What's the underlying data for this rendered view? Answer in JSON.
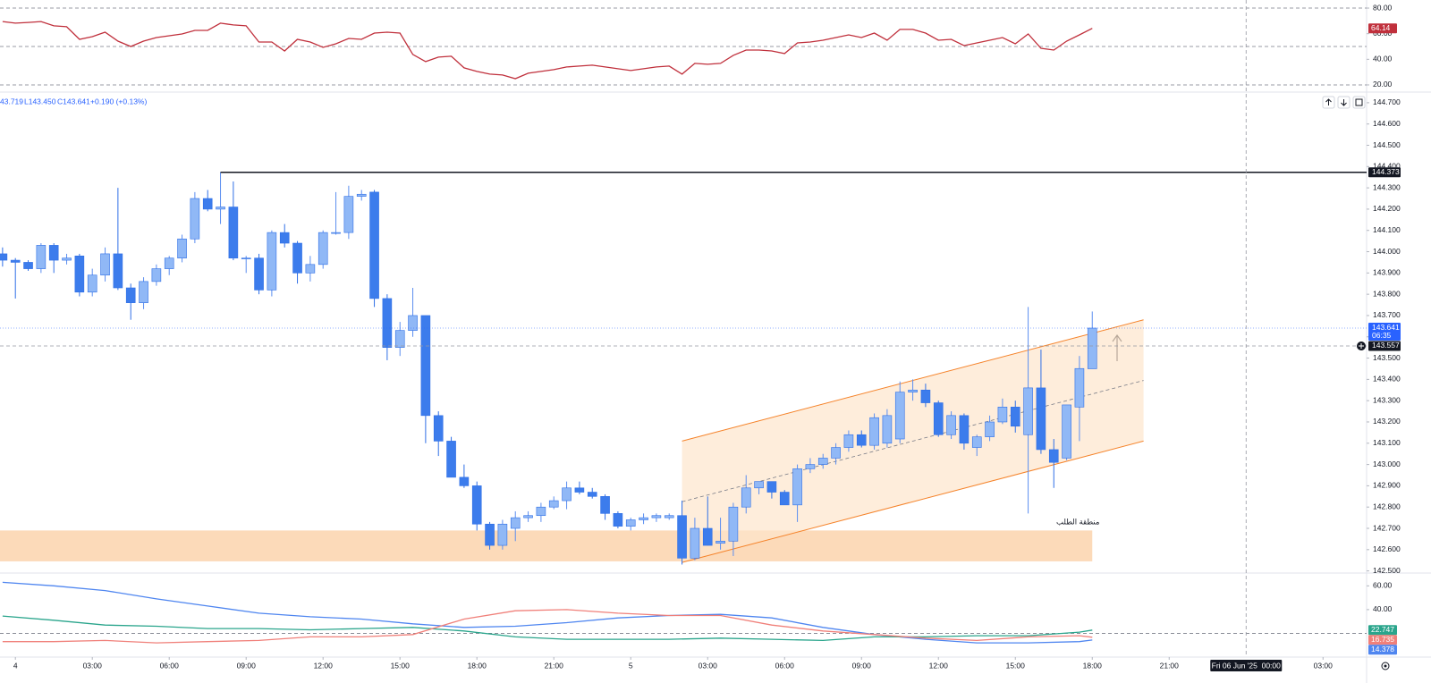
{
  "chart_data": [
    {
      "type": "line",
      "series": [
        {
          "color": "#c0303c",
          "values": [
            69.5,
            68.2,
            68.8,
            69.5,
            66.1,
            65.4,
            55.6,
            57.7,
            61.2,
            54.2,
            50.0,
            54.2,
            57.0,
            58.4,
            59.8,
            62.6,
            62.6,
            68.2,
            66.8,
            66.1,
            53.5,
            53.5,
            46.5,
            55.6,
            53.5,
            49.3,
            52.1,
            56.3,
            55.6,
            60.5,
            61.2,
            60.5,
            43.8,
            38.2,
            41.7,
            42.4,
            33.3,
            30.5,
            28.4,
            27.7,
            24.9,
            29.1,
            30.5,
            31.9,
            34.0,
            34.7,
            35.4,
            34.0,
            32.6,
            31.2,
            32.6,
            34.0,
            34.7,
            28.4,
            36.8,
            36.1,
            36.8,
            43.1,
            47.2,
            47.2,
            46.5,
            44.5,
            52.8,
            53.5,
            54.9,
            57.0,
            59.1,
            57.0,
            60.5,
            54.9,
            63.3,
            63.3,
            60.5,
            54.9,
            55.6,
            50.7,
            52.8,
            54.9,
            57.0,
            52.1,
            59.8,
            48.6,
            47.2,
            54.2,
            59.1,
            64.14
          ]
        }
      ],
      "ylim": [
        14.4,
        86.3
      ],
      "yticks": [
        {
          "value": 80,
          "label": "80.00"
        },
        {
          "value": 60,
          "label": "60.00"
        },
        {
          "value": 40,
          "label": "40.00"
        },
        {
          "value": 20,
          "label": "20.00"
        }
      ],
      "levels": [
        80,
        50,
        20
      ]
    },
    {
      "type": "candlestick",
      "legend": [
        "43.719",
        "L143.450",
        "C143.641",
        "+0.190 (+0.13%)"
      ],
      "open": [
        143.99,
        143.96,
        143.95,
        143.92,
        144.03,
        143.96,
        143.98,
        143.81,
        143.89,
        143.99,
        143.83,
        143.76,
        143.86,
        143.92,
        143.97,
        144.06,
        144.25,
        144.2,
        144.21,
        143.97,
        143.97,
        143.82,
        144.09,
        144.04,
        143.9,
        143.94,
        144.09,
        144.09,
        144.26,
        144.28,
        143.78,
        143.55,
        143.63,
        143.7,
        143.23,
        143.11,
        142.94,
        142.9,
        142.72,
        142.62,
        142.7,
        142.75,
        142.76,
        142.8,
        142.83,
        142.89,
        142.87,
        142.85,
        142.77,
        142.71,
        142.74,
        142.75,
        142.75,
        142.76,
        142.56,
        142.7,
        142.63,
        142.64,
        142.8,
        142.89,
        142.92,
        142.87,
        142.81,
        142.98,
        143.0,
        143.03,
        143.08,
        143.14,
        143.09,
        143.1,
        143.12,
        143.34,
        143.35,
        143.29,
        143.14,
        143.23,
        143.08,
        143.13,
        143.2,
        143.27,
        143.14,
        143.36,
        143.07,
        143.03,
        143.27,
        143.45
      ],
      "high": [
        144.02,
        143.97,
        143.96,
        144.04,
        144.04,
        143.99,
        143.99,
        143.92,
        144.02,
        144.3,
        143.85,
        143.88,
        143.94,
        143.98,
        144.08,
        144.28,
        144.29,
        144.373,
        144.33,
        143.98,
        143.99,
        144.1,
        144.13,
        144.05,
        143.98,
        144.1,
        144.28,
        144.31,
        144.29,
        144.29,
        143.8,
        143.67,
        143.83,
        143.7,
        143.25,
        143.13,
        143.0,
        142.92,
        142.73,
        142.74,
        142.78,
        142.78,
        142.82,
        142.85,
        142.92,
        142.92,
        142.89,
        142.86,
        142.78,
        142.75,
        142.77,
        142.77,
        142.77,
        142.83,
        142.75,
        142.85,
        142.75,
        142.82,
        142.95,
        142.92,
        142.92,
        142.88,
        143.0,
        143.03,
        143.05,
        143.1,
        143.16,
        143.16,
        143.24,
        143.26,
        143.39,
        143.4,
        143.38,
        143.3,
        143.25,
        143.24,
        143.14,
        143.23,
        143.31,
        143.3,
        143.74,
        143.54,
        143.12,
        143.28,
        143.51,
        143.719
      ],
      "low": [
        143.93,
        143.78,
        143.91,
        143.9,
        143.9,
        143.94,
        143.79,
        143.79,
        143.86,
        143.82,
        143.68,
        143.73,
        143.84,
        143.89,
        143.95,
        144.04,
        144.19,
        144.13,
        143.96,
        143.9,
        143.8,
        143.79,
        144.02,
        143.85,
        143.86,
        143.92,
        144.08,
        144.06,
        144.24,
        143.74,
        143.49,
        143.51,
        143.6,
        143.1,
        143.04,
        142.94,
        142.89,
        142.69,
        142.6,
        142.6,
        142.64,
        142.73,
        142.73,
        142.79,
        142.79,
        142.86,
        142.84,
        142.74,
        142.7,
        142.69,
        142.72,
        142.73,
        142.74,
        142.53,
        142.55,
        142.62,
        142.6,
        142.57,
        142.77,
        142.86,
        142.84,
        142.81,
        142.73,
        142.96,
        142.98,
        143.0,
        143.06,
        143.08,
        143.07,
        143.08,
        143.1,
        143.3,
        143.27,
        143.13,
        143.12,
        143.07,
        143.04,
        143.11,
        143.19,
        143.15,
        142.77,
        143.05,
        142.89,
        143.02,
        143.11,
        143.45
      ],
      "close": [
        143.96,
        143.95,
        143.92,
        144.03,
        143.96,
        143.97,
        143.81,
        143.89,
        143.99,
        143.83,
        143.76,
        143.86,
        143.92,
        143.97,
        144.06,
        144.25,
        144.2,
        144.21,
        143.97,
        143.97,
        143.82,
        144.09,
        144.04,
        143.9,
        143.94,
        144.09,
        144.09,
        144.26,
        144.27,
        143.78,
        143.55,
        143.63,
        143.7,
        143.23,
        143.11,
        142.94,
        142.9,
        142.72,
        142.62,
        142.72,
        142.75,
        142.76,
        142.8,
        142.83,
        142.89,
        142.87,
        142.85,
        142.77,
        142.71,
        142.74,
        142.75,
        142.76,
        142.76,
        142.56,
        142.7,
        142.62,
        142.64,
        142.8,
        142.89,
        142.92,
        142.87,
        142.81,
        142.98,
        143.0,
        143.03,
        143.08,
        143.14,
        143.09,
        143.22,
        143.23,
        143.34,
        143.35,
        143.29,
        143.14,
        143.23,
        143.1,
        143.13,
        143.2,
        143.27,
        143.18,
        143.36,
        143.07,
        143.01,
        143.28,
        143.451,
        143.641
      ],
      "up_color": "#90b8f6",
      "down_color": "#3c7cec",
      "ylim": [
        142.49,
        144.75
      ],
      "yticks": [
        {
          "value": 142.5,
          "label": "142.500"
        },
        {
          "value": 142.6,
          "label": "142.600"
        },
        {
          "value": 142.7,
          "label": "142.700"
        },
        {
          "value": 142.8,
          "label": "142.800"
        },
        {
          "value": 142.9,
          "label": "142.900"
        },
        {
          "value": 143.0,
          "label": "143.000"
        },
        {
          "value": 143.1,
          "label": "143.100"
        },
        {
          "value": 143.2,
          "label": "143.200"
        },
        {
          "value": 143.3,
          "label": "143.300"
        },
        {
          "value": 143.4,
          "label": "143.400"
        },
        {
          "value": 143.5,
          "label": "143.500"
        },
        {
          "value": 143.6,
          "label": "143.600"
        },
        {
          "value": 143.7,
          "label": "143.700"
        },
        {
          "value": 143.8,
          "label": "143.800"
        },
        {
          "value": 143.9,
          "label": "143.900"
        },
        {
          "value": 144.0,
          "label": "144.000"
        },
        {
          "value": 144.1,
          "label": "144.100"
        },
        {
          "value": 144.2,
          "label": "144.200"
        },
        {
          "value": 144.3,
          "label": "144.300"
        },
        {
          "value": 144.4,
          "label": "144.400"
        },
        {
          "value": 144.5,
          "label": "144.500"
        },
        {
          "value": 144.6,
          "label": "144.600"
        },
        {
          "value": 144.7,
          "label": "144.700"
        }
      ],
      "xlim": [
        -0.2,
        106.4
      ],
      "xticks": [
        {
          "value": 1,
          "label": "4"
        },
        {
          "value": 7,
          "label": "03:00"
        },
        {
          "value": 13,
          "label": "06:00"
        },
        {
          "value": 19,
          "label": "09:00"
        },
        {
          "value": 25,
          "label": "12:00"
        },
        {
          "value": 31,
          "label": "15:00"
        },
        {
          "value": 37,
          "label": "18:00"
        },
        {
          "value": 43,
          "label": "21:00"
        },
        {
          "value": 49,
          "label": "5"
        },
        {
          "value": 55,
          "label": "03:00"
        },
        {
          "value": 61,
          "label": "06:00"
        },
        {
          "value": 67,
          "label": "09:00"
        },
        {
          "value": 73,
          "label": "12:00"
        },
        {
          "value": 79,
          "label": "15:00"
        },
        {
          "value": 85,
          "label": "18:00"
        },
        {
          "value": 91,
          "label": "21:00"
        },
        {
          "value": 97,
          "label": "Fri 06 Jun '25  00:00"
        },
        {
          "value": 103,
          "label": "03:00"
        }
      ],
      "hline": {
        "value": 144.373,
        "from": 17
      },
      "countdown": "06:35",
      "crosshair": {
        "x": 97,
        "y": 143.557
      },
      "zone": {
        "label": "منطقة الطلب",
        "low": 142.545,
        "high": 142.69,
        "to": 85,
        "color": "#fbd3ad"
      },
      "channel": {
        "x": [
          53,
          89
        ],
        "upper": [
          143.11,
          143.68
        ],
        "lower": [
          142.54,
          143.11
        ],
        "color": "#f5832a"
      }
    },
    {
      "type": "line",
      "x": [
        0,
        4,
        8,
        12,
        16,
        20,
        24,
        28,
        32,
        36,
        40,
        44,
        48,
        52,
        56,
        60,
        64,
        68,
        72,
        76,
        80,
        84,
        85
      ],
      "series": [
        {
          "color": "#4f86f0",
          "values": [
            63,
            60,
            56,
            49,
            43,
            37,
            34,
            32,
            28,
            25,
            26,
            29,
            33,
            35,
            36,
            33,
            25,
            19,
            15,
            12,
            12,
            13,
            14.378
          ]
        },
        {
          "color": "#2aa58c",
          "values": [
            34.6,
            31,
            27,
            26,
            24,
            24,
            23,
            24,
            25,
            22,
            17,
            15,
            15,
            15,
            16,
            15,
            14,
            17,
            17,
            18,
            18,
            21,
            22.747
          ]
        },
        {
          "color": "#f0807a",
          "values": [
            13,
            13,
            14,
            12,
            13,
            14,
            17,
            17,
            19,
            32,
            39,
            40,
            37,
            35,
            35,
            27,
            22,
            19,
            16,
            14,
            17,
            18,
            16.735
          ]
        }
      ],
      "ylim": [
        0,
        70.8
      ],
      "yticks": [
        {
          "value": 60,
          "label": "60.00"
        },
        {
          "value": 40,
          "label": "40.00"
        }
      ],
      "levels": [
        20
      ]
    }
  ]
}
